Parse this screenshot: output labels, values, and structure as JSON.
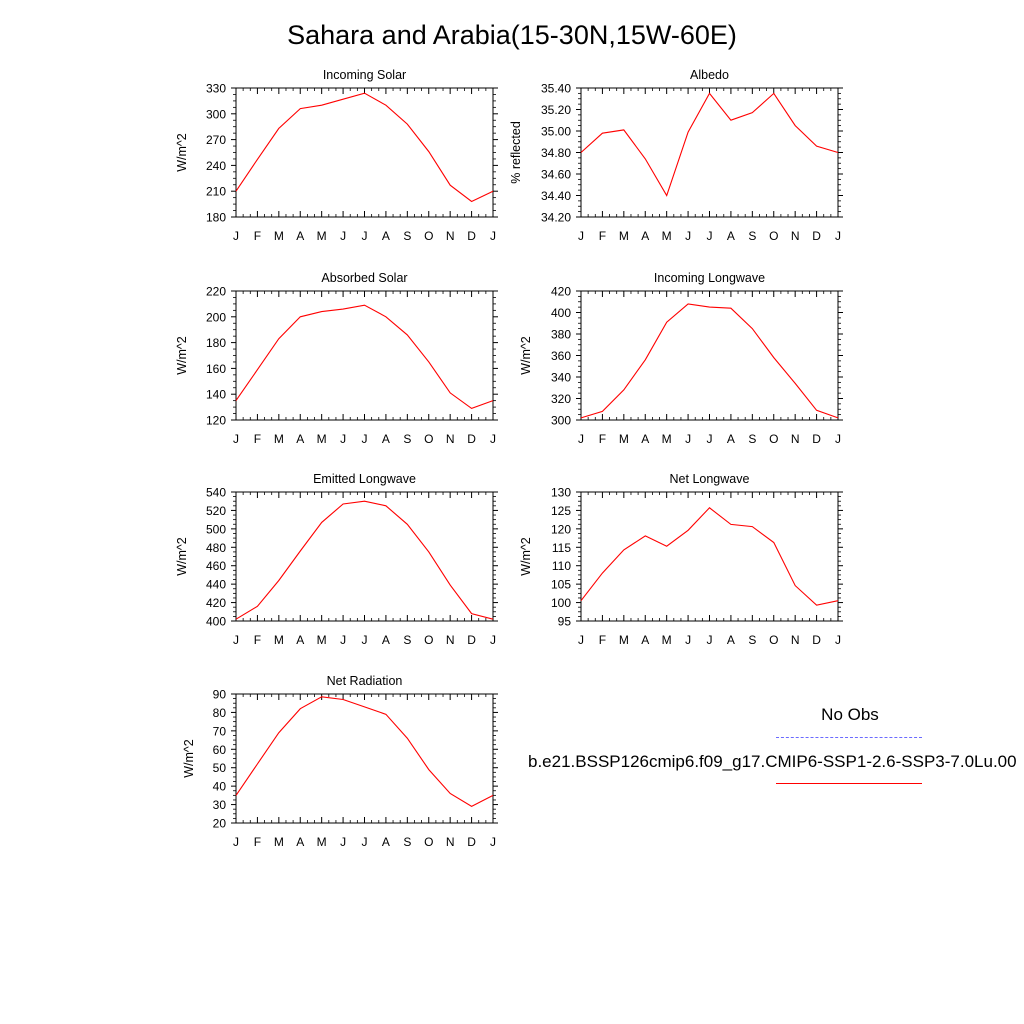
{
  "title": "Sahara and Arabia(15-30N,15W-60E)",
  "colors": {
    "model": "#ff0000",
    "obs": "#6a6aff",
    "axis": "#000000"
  },
  "legend": {
    "obs_label": "No Obs",
    "case_label": "b.e21.BSSP126cmip6.f09_g17.CMIP6-SSP1-2.6-SSP3-7.0Lu.00"
  },
  "chart_data": [
    {
      "type": "line",
      "title": "Incoming Solar",
      "ylabel": "W/m^2",
      "categories": [
        "J",
        "F",
        "M",
        "A",
        "M",
        "J",
        "J",
        "A",
        "S",
        "O",
        "N",
        "D",
        "J"
      ],
      "ylim": [
        180,
        330
      ],
      "yticks": [
        180,
        210,
        240,
        270,
        300,
        330
      ],
      "ytick_labels": [
        "180",
        "210",
        "240",
        "270",
        "300",
        "330"
      ],
      "values": [
        210,
        247,
        283,
        306,
        310,
        317,
        324,
        310,
        288,
        256,
        217,
        198,
        210
      ]
    },
    {
      "type": "line",
      "title": "Albedo",
      "ylabel": "% reflected",
      "categories": [
        "J",
        "F",
        "M",
        "A",
        "M",
        "J",
        "J",
        "A",
        "S",
        "O",
        "N",
        "D",
        "J"
      ],
      "ylim": [
        34.2,
        35.4
      ],
      "yticks": [
        34.2,
        34.4,
        34.6,
        34.8,
        35.0,
        35.2,
        35.4
      ],
      "ytick_labels": [
        "34.20",
        "34.40",
        "34.60",
        "34.80",
        "35.00",
        "35.20",
        "35.40"
      ],
      "values": [
        34.8,
        34.98,
        35.01,
        34.74,
        34.4,
        34.99,
        35.35,
        35.1,
        35.17,
        35.35,
        35.05,
        34.86,
        34.8
      ]
    },
    {
      "type": "line",
      "title": "Absorbed Solar",
      "ylabel": "W/m^2",
      "categories": [
        "J",
        "F",
        "M",
        "A",
        "M",
        "J",
        "J",
        "A",
        "S",
        "O",
        "N",
        "D",
        "J"
      ],
      "ylim": [
        120,
        220
      ],
      "yticks": [
        120,
        140,
        160,
        180,
        200,
        220
      ],
      "ytick_labels": [
        "120",
        "140",
        "160",
        "180",
        "200",
        "220"
      ],
      "values": [
        135,
        159,
        183,
        200,
        204,
        206,
        209,
        200,
        186,
        165,
        141,
        129,
        135
      ]
    },
    {
      "type": "line",
      "title": "Incoming Longwave",
      "ylabel": "W/m^2",
      "categories": [
        "J",
        "F",
        "M",
        "A",
        "M",
        "J",
        "J",
        "A",
        "S",
        "O",
        "N",
        "D",
        "J"
      ],
      "ylim": [
        300,
        420
      ],
      "yticks": [
        300,
        320,
        340,
        360,
        380,
        400,
        420
      ],
      "ytick_labels": [
        "300",
        "320",
        "340",
        "360",
        "380",
        "400",
        "420"
      ],
      "values": [
        302,
        308,
        328,
        356,
        391,
        408,
        405,
        404,
        385,
        358,
        334,
        309,
        302
      ]
    },
    {
      "type": "line",
      "title": "Emitted Longwave",
      "ylabel": "W/m^2",
      "categories": [
        "J",
        "F",
        "M",
        "A",
        "M",
        "J",
        "J",
        "A",
        "S",
        "O",
        "N",
        "D",
        "J"
      ],
      "ylim": [
        400,
        540
      ],
      "yticks": [
        400,
        420,
        440,
        460,
        480,
        500,
        520,
        540
      ],
      "ytick_labels": [
        "400",
        "420",
        "440",
        "460",
        "480",
        "500",
        "520",
        "540"
      ],
      "values": [
        402,
        416,
        444,
        476,
        507,
        527,
        530,
        525,
        505,
        475,
        439,
        408,
        402
      ]
    },
    {
      "type": "line",
      "title": "Net Longwave",
      "ylabel": "W/m^2",
      "categories": [
        "J",
        "F",
        "M",
        "A",
        "M",
        "J",
        "J",
        "A",
        "S",
        "O",
        "N",
        "D",
        "J"
      ],
      "ylim": [
        95,
        130
      ],
      "yticks": [
        95,
        100,
        105,
        110,
        115,
        120,
        125,
        130
      ],
      "ytick_labels": [
        "95",
        "100",
        "105",
        "110",
        "115",
        "120",
        "125",
        "130"
      ],
      "values": [
        100.5,
        108,
        114.3,
        118.1,
        115.3,
        119.6,
        125.7,
        121.2,
        120.6,
        116.3,
        104.6,
        99.3,
        100.5
      ]
    },
    {
      "type": "line",
      "title": "Net Radiation",
      "ylabel": "W/m^2",
      "categories": [
        "J",
        "F",
        "M",
        "A",
        "M",
        "J",
        "J",
        "A",
        "S",
        "O",
        "N",
        "D",
        "J"
      ],
      "ylim": [
        20,
        90
      ],
      "yticks": [
        20,
        30,
        40,
        50,
        60,
        70,
        80,
        90
      ],
      "ytick_labels": [
        "20",
        "30",
        "40",
        "50",
        "60",
        "70",
        "80",
        "90"
      ],
      "values": [
        35,
        52,
        69,
        82,
        88.5,
        87,
        83,
        79,
        66,
        49,
        36,
        29,
        35
      ]
    }
  ]
}
